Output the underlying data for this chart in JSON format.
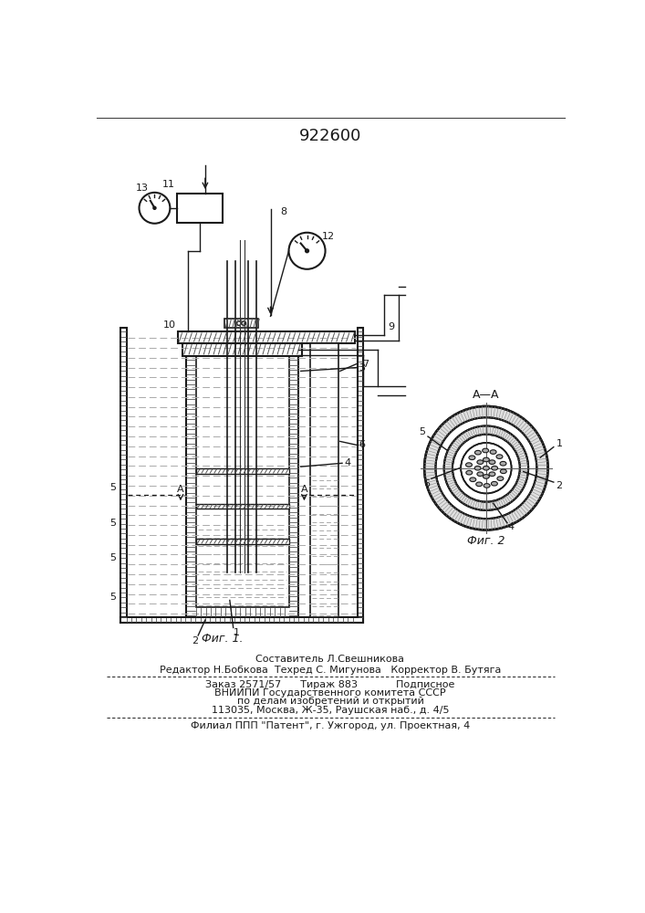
{
  "title": "922600",
  "fig1_caption": "Фиг. 1.",
  "fig2_caption": "Фиг. 2",
  "fig2_section": "А—А",
  "footer_lines": [
    "Составитель Л.Свешникова",
    "Редактор Н.Бобкова  Техред С. Мигунова   Корректор В. Бутяга",
    "Заказ 2571/57      Тираж 883            Подписное",
    "ВНИИПИ Государственного комитета СССР",
    "по делам изобретений и открытий",
    "113035, Москва, Ж-35, Раушская наб., д. 4/5",
    "Филиал ППП \"Патент\", г. Ужгород, ул. Проектная, 4"
  ],
  "bg_color": "#ffffff",
  "line_color": "#1a1a1a"
}
